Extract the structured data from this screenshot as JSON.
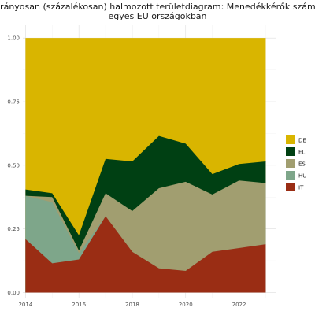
{
  "chart_data": {
    "type": "area",
    "stacked": "percent",
    "title_lines": [
      "Arányosan (százalékosan) halmozott területdiagram: Menedékkérők száma",
      "egyes EU országokban"
    ],
    "xlabel": "",
    "ylabel": "",
    "x": [
      2014,
      2015,
      2016,
      2017,
      2018,
      2019,
      2020,
      2021,
      2022,
      2023
    ],
    "xlim": [
      2013.9,
      2023.4
    ],
    "ylim": [
      -0.02,
      1.05
    ],
    "x_ticks": [
      2014,
      2016,
      2018,
      2020,
      2022
    ],
    "x_tick_labels": [
      "2014",
      "2016",
      "2018",
      "2020",
      "2022"
    ],
    "y_ticks": [
      0,
      0.25,
      0.5,
      0.75,
      1
    ],
    "y_tick_labels": [
      "0.00",
      "0.25",
      "0.50",
      "0.75",
      "1.00"
    ],
    "grid": true,
    "legend_position": "right",
    "legend_order": [
      "DE",
      "EL",
      "ES",
      "HU",
      "IT"
    ],
    "cumulative": {
      "IT": [
        0.21,
        0.115,
        0.13,
        0.3,
        0.16,
        0.095,
        0.085,
        0.16,
        0.175,
        0.19
      ],
      "HU": [
        0.38,
        0.355,
        0.155,
        0.3,
        0.16,
        0.095,
        0.085,
        0.16,
        0.175,
        0.19
      ],
      "ES": [
        0.38,
        0.375,
        0.165,
        0.39,
        0.32,
        0.41,
        0.435,
        0.385,
        0.44,
        0.43
      ],
      "EL": [
        0.405,
        0.39,
        0.225,
        0.525,
        0.515,
        0.615,
        0.585,
        0.465,
        0.505,
        0.515
      ],
      "DE": [
        1,
        1,
        1,
        1,
        1,
        1,
        1,
        1,
        1,
        1
      ]
    },
    "series": [
      {
        "name": "DE",
        "color": "#d9b500",
        "values": [
          0.595,
          0.61,
          0.775,
          0.475,
          0.485,
          0.385,
          0.415,
          0.535,
          0.495,
          0.485
        ]
      },
      {
        "name": "EL",
        "color": "#004013",
        "values": [
          0.025,
          0.015,
          0.06,
          0.135,
          0.195,
          0.205,
          0.15,
          0.08,
          0.065,
          0.085
        ]
      },
      {
        "name": "ES",
        "color": "#a19e70",
        "values": [
          0.0,
          0.02,
          0.01,
          0.09,
          0.16,
          0.315,
          0.35,
          0.225,
          0.265,
          0.24
        ]
      },
      {
        "name": "HU",
        "color": "#7ea68a",
        "values": [
          0.17,
          0.24,
          0.025,
          0.0,
          0.0,
          0.0,
          0.0,
          0.0,
          0.0,
          0.0
        ]
      },
      {
        "name": "IT",
        "color": "#9a2d14",
        "values": [
          0.21,
          0.115,
          0.13,
          0.3,
          0.16,
          0.095,
          0.085,
          0.16,
          0.175,
          0.19
        ]
      }
    ]
  }
}
